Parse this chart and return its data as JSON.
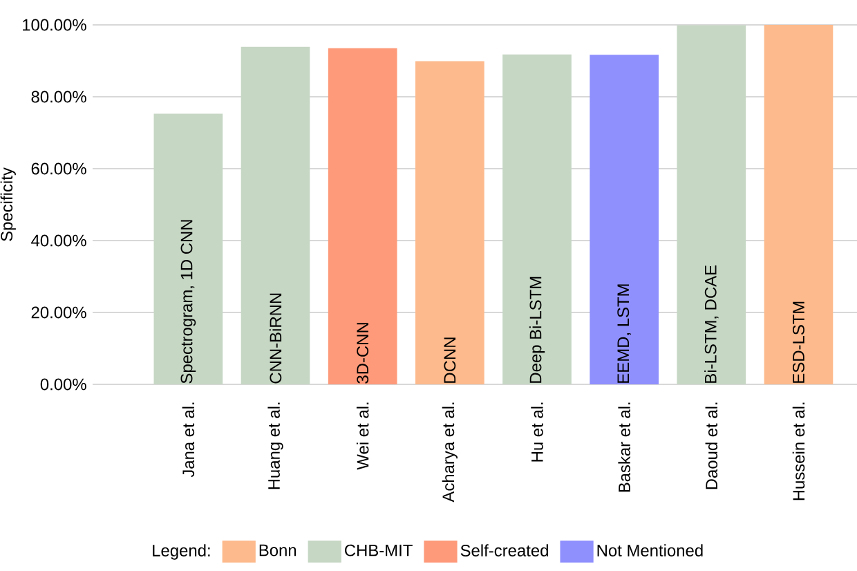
{
  "chart_data": {
    "type": "bar",
    "ylabel": "Specificity",
    "legend_title": "Legend:",
    "categories": [
      "Jana et al.",
      "Huang et al.",
      "Wei et al.",
      "Acharya et al.",
      "Hu et al.",
      "Baskar et al.",
      "Daoud et al.",
      "Hussein et al."
    ],
    "series": [
      {
        "name": "Bonn",
        "color": "#fdba8c",
        "values": [
          null,
          null,
          null,
          89.9,
          null,
          null,
          null,
          100
        ]
      },
      {
        "name": "CHB-MIT",
        "color": "#c6d7c4",
        "values": [
          75.3,
          93.9,
          null,
          null,
          91.8,
          null,
          99.9,
          null
        ]
      },
      {
        "name": "Self-created",
        "color": "#fe9a7a",
        "values": [
          null,
          null,
          93.5,
          null,
          null,
          null,
          null,
          null
        ]
      },
      {
        "name": "Not Mentioned",
        "color": "#8f8ffe",
        "values": [
          null,
          null,
          null,
          null,
          null,
          91.7,
          null,
          null
        ]
      }
    ],
    "ylim": [
      0,
      100
    ],
    "yticks": [
      {
        "value": 0,
        "label": "0.00%"
      },
      {
        "value": 20,
        "label": "20.00%"
      },
      {
        "value": 40,
        "label": "40.00%"
      },
      {
        "value": 60,
        "label": "60.00%"
      },
      {
        "value": 80,
        "label": "80.00%"
      },
      {
        "value": 100,
        "label": "100.00%"
      }
    ],
    "grid": "y",
    "legend": "bottom",
    "annotations": [
      "Spectrogram, 1D CNN",
      "CNN-BiRNN",
      "3D-CNN",
      "DCNN",
      "Deep Bi-LSTM",
      "EEMD, LSTM",
      "Bi-LSTM, DCAE",
      "ESD-LSTM"
    ]
  }
}
